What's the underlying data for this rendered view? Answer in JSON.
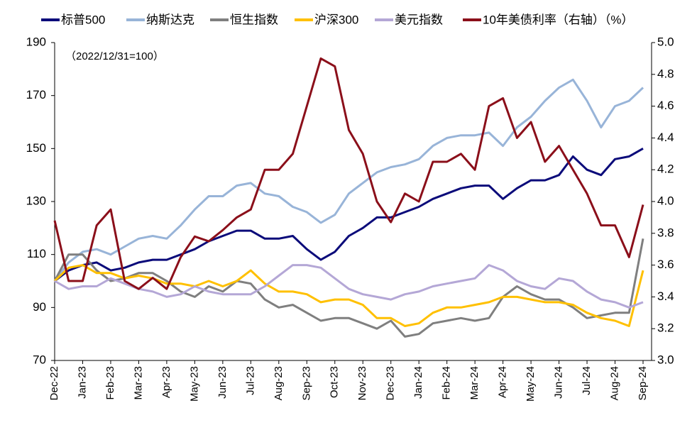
{
  "chart_data": {
    "type": "line",
    "annotation": "（2022/12/31=100）",
    "categories": [
      "Dec-22",
      null,
      "Jan-23",
      null,
      "Feb-23",
      null,
      "Mar-23",
      null,
      "Apr-23",
      null,
      "May-23",
      null,
      "Jun-23",
      null,
      "Jul-23",
      null,
      "Aug-23",
      null,
      "Sep-23",
      null,
      "Oct-23",
      null,
      "Nov-23",
      null,
      "Dec-23",
      null,
      "Jan-24",
      null,
      "Feb-24",
      null,
      "Mar-24",
      null,
      "Apr-24",
      null,
      "May-24",
      null,
      "Jun-24",
      null,
      "Jul-24",
      null,
      "Aug-24",
      null,
      "Sep-24"
    ],
    "series": [
      {
        "name": "标普500",
        "color": "#0b0b7a",
        "values": [
          100,
          104,
          106,
          107,
          104,
          105,
          107,
          108,
          108,
          110,
          112,
          115,
          117,
          119,
          119,
          116,
          116,
          117,
          112,
          108,
          111,
          117,
          120,
          124,
          124,
          126,
          128,
          131,
          133,
          135,
          136,
          136,
          131,
          135,
          138,
          138,
          140,
          147,
          142,
          140,
          146,
          147,
          150
        ]
      },
      {
        "name": "纳斯达克",
        "color": "#98b4d8",
        "values": [
          100,
          107,
          111,
          112,
          110,
          113,
          116,
          117,
          116,
          121,
          127,
          132,
          132,
          136,
          137,
          133,
          132,
          128,
          126,
          122,
          125,
          133,
          137,
          141,
          143,
          144,
          146,
          151,
          154,
          155,
          155,
          156,
          151,
          158,
          162,
          168,
          173,
          176,
          168,
          158,
          166,
          168,
          173
        ]
      },
      {
        "name": "恒生指数",
        "color": "#7f7f7f",
        "values": [
          100,
          110,
          110,
          104,
          100,
          101,
          103,
          103,
          100,
          96,
          94,
          98,
          96,
          100,
          99,
          93,
          90,
          91,
          88,
          85,
          86,
          86,
          84,
          82,
          85,
          79,
          80,
          84,
          85,
          86,
          85,
          86,
          94,
          98,
          95,
          93,
          93,
          90,
          86,
          87,
          88,
          88,
          116
        ]
      },
      {
        "name": "沪深300",
        "color": "#ffc000",
        "values": [
          100,
          105,
          106,
          103,
          103,
          101,
          102,
          101,
          99,
          99,
          98,
          100,
          98,
          100,
          104,
          99,
          96,
          96,
          95,
          92,
          93,
          93,
          91,
          86,
          86,
          83,
          84,
          88,
          90,
          90,
          91,
          92,
          94,
          94,
          93,
          92,
          92,
          91,
          88,
          86,
          85,
          83,
          104
        ]
      },
      {
        "name": "美元指数",
        "color": "#b4a7d6",
        "values": [
          100,
          97,
          98,
          98,
          101,
          99,
          97,
          96,
          94,
          95,
          98,
          96,
          95,
          95,
          95,
          98,
          102,
          106,
          106,
          105,
          101,
          97,
          95,
          94,
          93,
          95,
          96,
          98,
          99,
          100,
          101,
          106,
          104,
          100,
          98,
          97,
          101,
          100,
          96,
          93,
          92,
          90,
          92
        ]
      },
      {
        "name": "10年美债利率（右轴）（%）",
        "color": "#8b0f1a",
        "axis": "y2",
        "values": [
          3.88,
          3.5,
          3.5,
          3.85,
          3.95,
          3.5,
          3.45,
          3.52,
          3.45,
          3.65,
          3.78,
          3.75,
          3.82,
          3.9,
          3.95,
          4.2,
          4.2,
          4.3,
          4.6,
          4.9,
          4.85,
          4.45,
          4.3,
          4.0,
          3.87,
          4.05,
          4.0,
          4.25,
          4.25,
          4.3,
          4.2,
          4.6,
          4.65,
          4.4,
          4.5,
          4.25,
          4.35,
          4.2,
          4.05,
          3.85,
          3.85,
          3.65,
          3.98
        ]
      }
    ],
    "ylim": [
      70,
      190
    ],
    "yticks": [
      70,
      90,
      110,
      130,
      150,
      170,
      190
    ],
    "y2lim": [
      3,
      5
    ],
    "y2ticks": [
      {
        "value": 3,
        "label": "3.0"
      },
      3.2,
      3.4,
      3.6,
      3.8,
      {
        "value": 4,
        "label": "4.0"
      },
      4.2,
      4.4,
      4.6,
      4.8,
      {
        "value": 5,
        "label": "5.0"
      }
    ],
    "grid": false,
    "legend": "top"
  }
}
